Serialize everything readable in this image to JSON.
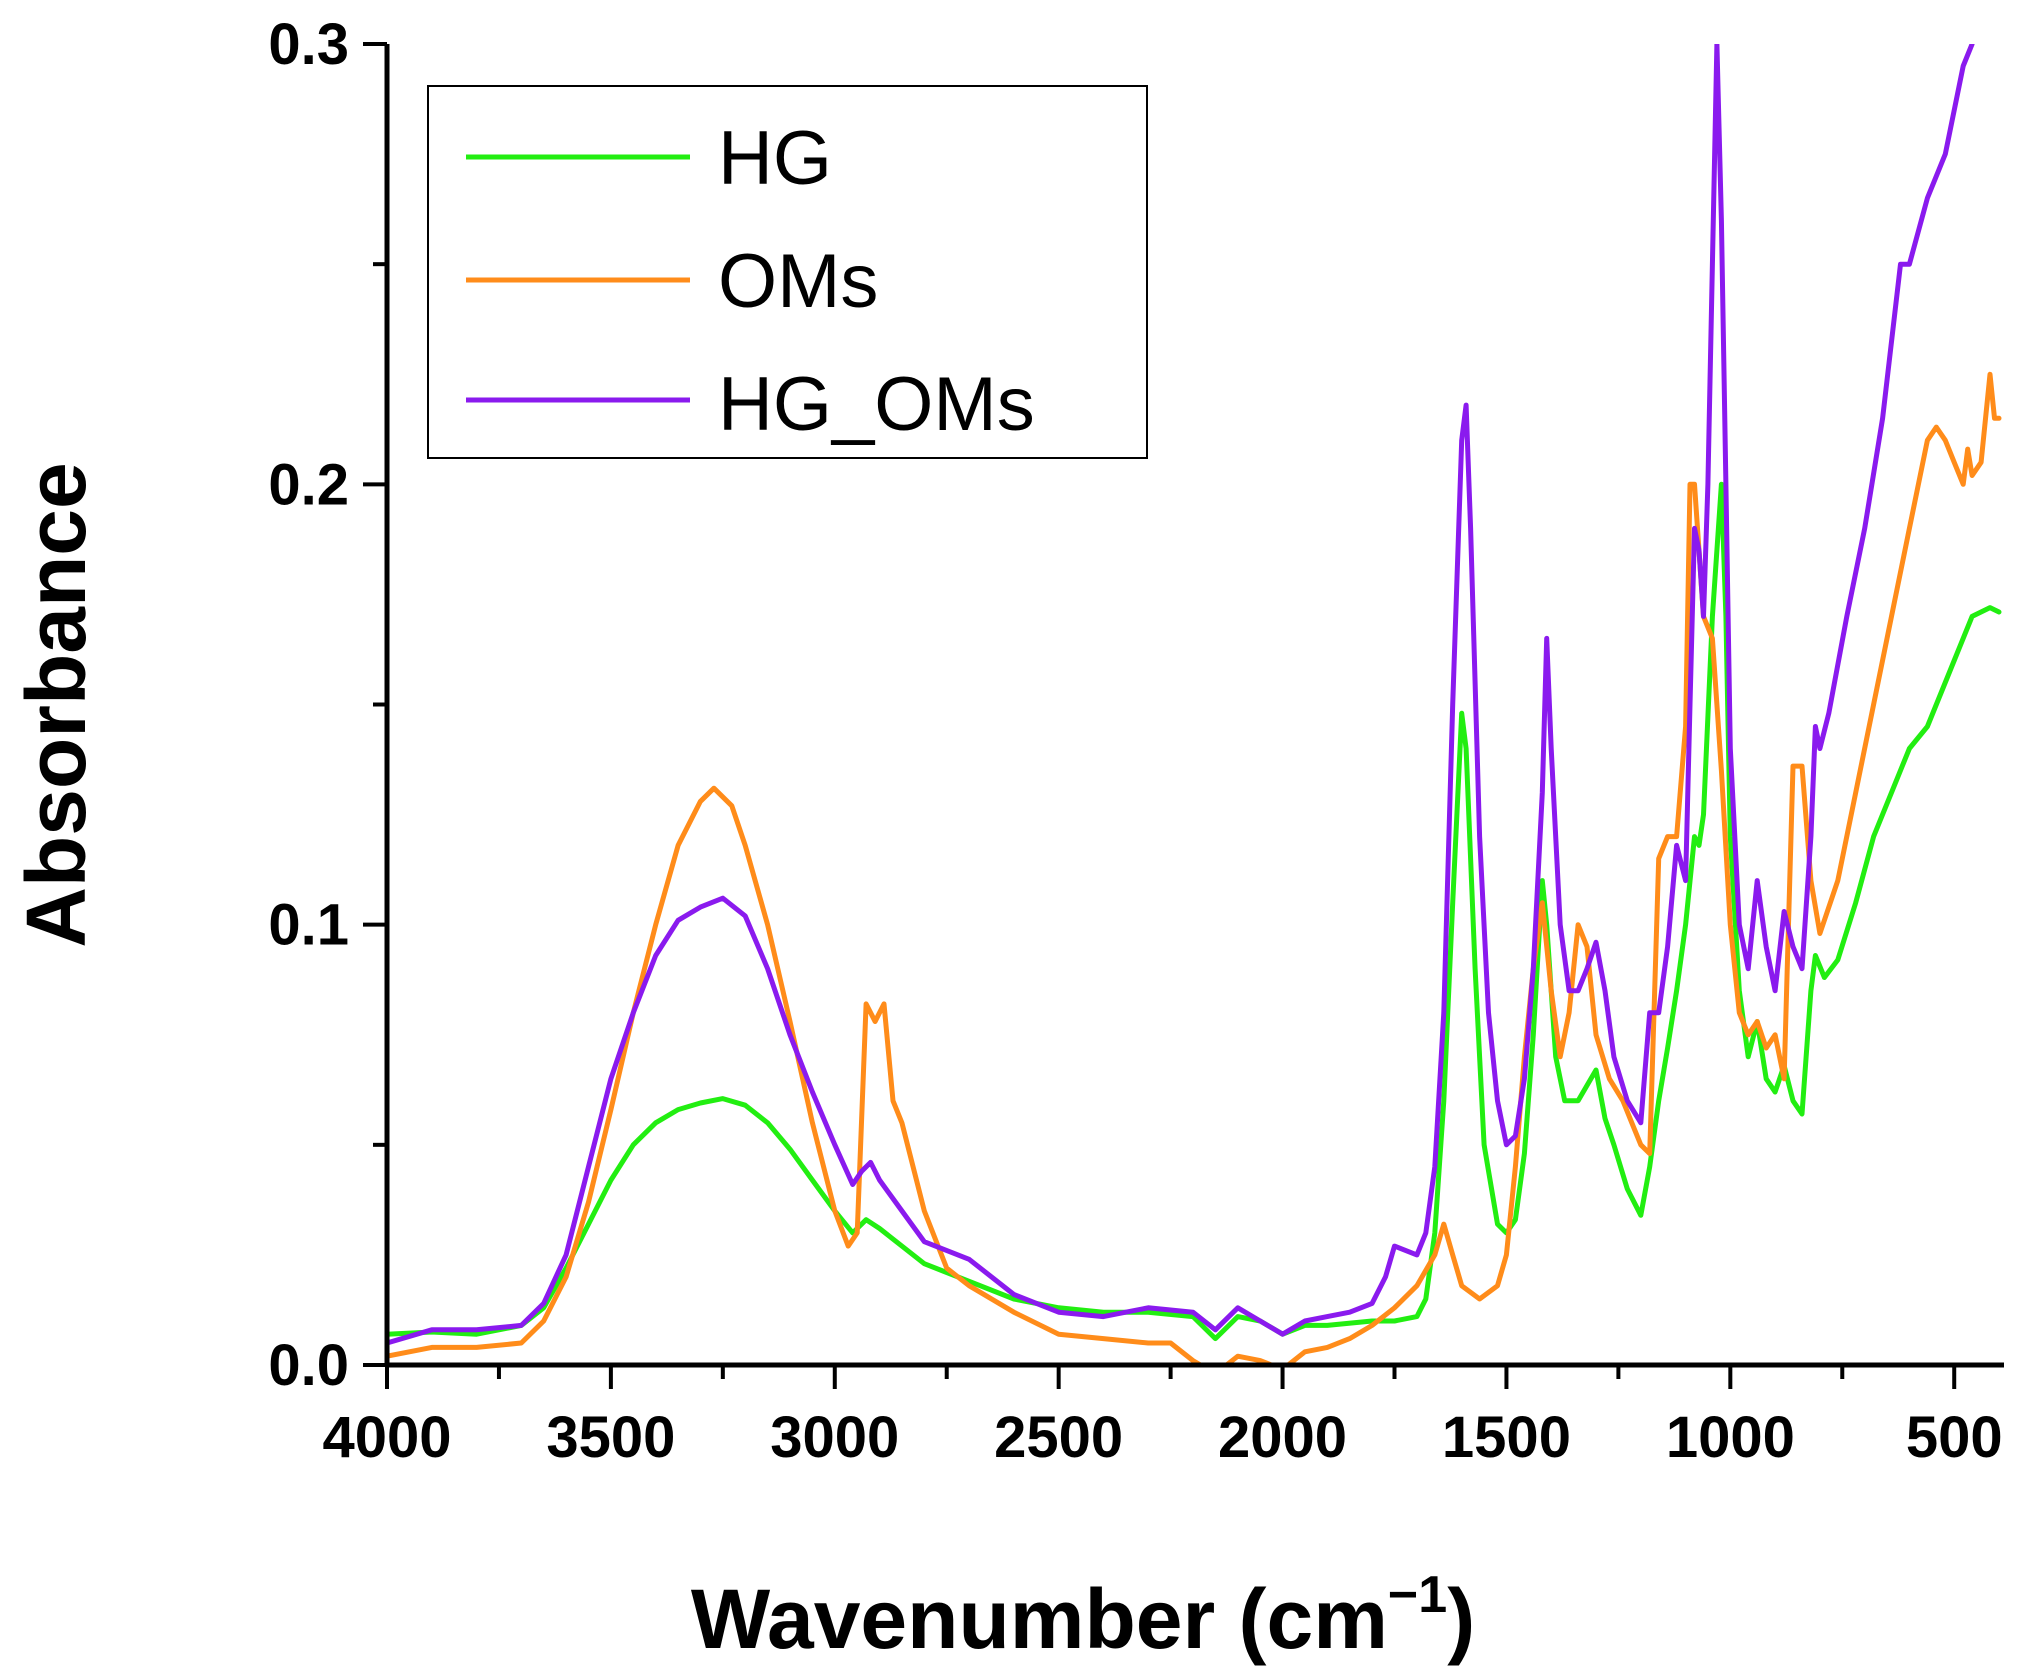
{
  "chart_data": {
    "type": "line",
    "title": "",
    "xlabel": "Wavenumber (cm",
    "xlabel_sup": "−1",
    "xlabel_close": ")",
    "ylabel": "Absorbance",
    "xlim": [
      4000,
      400
    ],
    "ylim": [
      0,
      0.3
    ],
    "x_ticks": [
      4000,
      3500,
      3000,
      2500,
      2000,
      1500,
      1000,
      500
    ],
    "x_tick_labels": [
      "4000",
      "3500",
      "3000",
      "2500",
      "2000",
      "1500",
      "1000",
      "500"
    ],
    "y_ticks": [
      0,
      0.1,
      0.2,
      0.3
    ],
    "y_tick_labels": [
      "0.0",
      "0.1",
      "0.2",
      "0.3"
    ],
    "legend_position": "top-left",
    "grid": false,
    "series": [
      {
        "name": "HG",
        "color": "#22ee11",
        "points": [
          [
            4000,
            0.007
          ],
          [
            3900,
            0.0075
          ],
          [
            3800,
            0.007
          ],
          [
            3700,
            0.009
          ],
          [
            3650,
            0.013
          ],
          [
            3600,
            0.022
          ],
          [
            3550,
            0.032
          ],
          [
            3500,
            0.042
          ],
          [
            3450,
            0.05
          ],
          [
            3400,
            0.055
          ],
          [
            3350,
            0.058
          ],
          [
            3300,
            0.0595
          ],
          [
            3250,
            0.0605
          ],
          [
            3200,
            0.059
          ],
          [
            3150,
            0.055
          ],
          [
            3100,
            0.049
          ],
          [
            3050,
            0.042
          ],
          [
            3000,
            0.035
          ],
          [
            2960,
            0.03
          ],
          [
            2930,
            0.033
          ],
          [
            2900,
            0.031
          ],
          [
            2850,
            0.027
          ],
          [
            2800,
            0.023
          ],
          [
            2750,
            0.021
          ],
          [
            2700,
            0.019
          ],
          [
            2600,
            0.015
          ],
          [
            2500,
            0.013
          ],
          [
            2400,
            0.012
          ],
          [
            2300,
            0.012
          ],
          [
            2200,
            0.011
          ],
          [
            2150,
            0.006
          ],
          [
            2100,
            0.011
          ],
          [
            2050,
            0.01
          ],
          [
            2000,
            0.007
          ],
          [
            1950,
            0.009
          ],
          [
            1900,
            0.009
          ],
          [
            1800,
            0.01
          ],
          [
            1750,
            0.01
          ],
          [
            1700,
            0.011
          ],
          [
            1680,
            0.015
          ],
          [
            1660,
            0.03
          ],
          [
            1640,
            0.06
          ],
          [
            1620,
            0.105
          ],
          [
            1600,
            0.148
          ],
          [
            1590,
            0.14
          ],
          [
            1570,
            0.09
          ],
          [
            1550,
            0.05
          ],
          [
            1520,
            0.032
          ],
          [
            1500,
            0.03
          ],
          [
            1480,
            0.033
          ],
          [
            1460,
            0.048
          ],
          [
            1440,
            0.075
          ],
          [
            1420,
            0.11
          ],
          [
            1410,
            0.1
          ],
          [
            1390,
            0.07
          ],
          [
            1370,
            0.06
          ],
          [
            1340,
            0.06
          ],
          [
            1300,
            0.067
          ],
          [
            1280,
            0.056
          ],
          [
            1260,
            0.05
          ],
          [
            1230,
            0.04
          ],
          [
            1200,
            0.034
          ],
          [
            1180,
            0.045
          ],
          [
            1160,
            0.06
          ],
          [
            1140,
            0.072
          ],
          [
            1120,
            0.085
          ],
          [
            1100,
            0.1
          ],
          [
            1080,
            0.12
          ],
          [
            1070,
            0.118
          ],
          [
            1060,
            0.125
          ],
          [
            1040,
            0.17
          ],
          [
            1020,
            0.2
          ],
          [
            1010,
            0.17
          ],
          [
            1000,
            0.12
          ],
          [
            980,
            0.085
          ],
          [
            960,
            0.07
          ],
          [
            940,
            0.078
          ],
          [
            920,
            0.065
          ],
          [
            900,
            0.062
          ],
          [
            880,
            0.068
          ],
          [
            860,
            0.06
          ],
          [
            840,
            0.057
          ],
          [
            820,
            0.085
          ],
          [
            810,
            0.093
          ],
          [
            790,
            0.088
          ],
          [
            760,
            0.092
          ],
          [
            720,
            0.105
          ],
          [
            680,
            0.12
          ],
          [
            640,
            0.13
          ],
          [
            600,
            0.14
          ],
          [
            560,
            0.145
          ],
          [
            500,
            0.16
          ],
          [
            460,
            0.17
          ],
          [
            420,
            0.172
          ],
          [
            400,
            0.171
          ]
        ]
      },
      {
        "name": "OMs",
        "color": "#ff8c1a",
        "points": [
          [
            4000,
            0.002
          ],
          [
            3900,
            0.004
          ],
          [
            3800,
            0.004
          ],
          [
            3700,
            0.005
          ],
          [
            3650,
            0.01
          ],
          [
            3600,
            0.02
          ],
          [
            3550,
            0.037
          ],
          [
            3500,
            0.058
          ],
          [
            3450,
            0.08
          ],
          [
            3400,
            0.1
          ],
          [
            3350,
            0.118
          ],
          [
            3300,
            0.128
          ],
          [
            3270,
            0.131
          ],
          [
            3230,
            0.127
          ],
          [
            3200,
            0.118
          ],
          [
            3150,
            0.1
          ],
          [
            3100,
            0.078
          ],
          [
            3050,
            0.055
          ],
          [
            3000,
            0.035
          ],
          [
            2970,
            0.027
          ],
          [
            2950,
            0.03
          ],
          [
            2930,
            0.082
          ],
          [
            2910,
            0.078
          ],
          [
            2890,
            0.082
          ],
          [
            2870,
            0.06
          ],
          [
            2850,
            0.055
          ],
          [
            2800,
            0.035
          ],
          [
            2750,
            0.022
          ],
          [
            2700,
            0.018
          ],
          [
            2600,
            0.012
          ],
          [
            2500,
            0.007
          ],
          [
            2400,
            0.006
          ],
          [
            2300,
            0.005
          ],
          [
            2250,
            0.005
          ],
          [
            2200,
            0.001
          ],
          [
            2150,
            -0.002
          ],
          [
            2100,
            0.002
          ],
          [
            2050,
            0.001
          ],
          [
            2000,
            -0.001
          ],
          [
            1950,
            0.003
          ],
          [
            1900,
            0.004
          ],
          [
            1850,
            0.006
          ],
          [
            1800,
            0.009
          ],
          [
            1750,
            0.013
          ],
          [
            1700,
            0.018
          ],
          [
            1660,
            0.025
          ],
          [
            1640,
            0.032
          ],
          [
            1620,
            0.025
          ],
          [
            1600,
            0.018
          ],
          [
            1560,
            0.015
          ],
          [
            1520,
            0.018
          ],
          [
            1500,
            0.025
          ],
          [
            1480,
            0.045
          ],
          [
            1460,
            0.07
          ],
          [
            1440,
            0.09
          ],
          [
            1420,
            0.105
          ],
          [
            1400,
            0.085
          ],
          [
            1380,
            0.07
          ],
          [
            1360,
            0.08
          ],
          [
            1340,
            0.1
          ],
          [
            1320,
            0.095
          ],
          [
            1300,
            0.075
          ],
          [
            1270,
            0.065
          ],
          [
            1240,
            0.06
          ],
          [
            1220,
            0.055
          ],
          [
            1200,
            0.05
          ],
          [
            1180,
            0.048
          ],
          [
            1160,
            0.115
          ],
          [
            1140,
            0.12
          ],
          [
            1120,
            0.12
          ],
          [
            1100,
            0.145
          ],
          [
            1090,
            0.2
          ],
          [
            1080,
            0.2
          ],
          [
            1060,
            0.17
          ],
          [
            1040,
            0.165
          ],
          [
            1020,
            0.135
          ],
          [
            1000,
            0.1
          ],
          [
            980,
            0.08
          ],
          [
            960,
            0.075
          ],
          [
            940,
            0.078
          ],
          [
            920,
            0.072
          ],
          [
            900,
            0.075
          ],
          [
            880,
            0.065
          ],
          [
            860,
            0.136
          ],
          [
            840,
            0.136
          ],
          [
            820,
            0.11
          ],
          [
            800,
            0.098
          ],
          [
            760,
            0.11
          ],
          [
            720,
            0.13
          ],
          [
            680,
            0.15
          ],
          [
            640,
            0.17
          ],
          [
            600,
            0.19
          ],
          [
            560,
            0.21
          ],
          [
            540,
            0.213
          ],
          [
            520,
            0.21
          ],
          [
            500,
            0.205
          ],
          [
            480,
            0.2
          ],
          [
            470,
            0.208
          ],
          [
            460,
            0.202
          ],
          [
            440,
            0.205
          ],
          [
            420,
            0.225
          ],
          [
            410,
            0.215
          ],
          [
            400,
            0.215
          ]
        ]
      },
      {
        "name": "HG_OMs",
        "color": "#8a1aee",
        "points": [
          [
            4000,
            0.005
          ],
          [
            3900,
            0.008
          ],
          [
            3800,
            0.008
          ],
          [
            3700,
            0.009
          ],
          [
            3650,
            0.014
          ],
          [
            3600,
            0.025
          ],
          [
            3550,
            0.045
          ],
          [
            3500,
            0.065
          ],
          [
            3450,
            0.08
          ],
          [
            3400,
            0.093
          ],
          [
            3350,
            0.101
          ],
          [
            3300,
            0.104
          ],
          [
            3250,
            0.106
          ],
          [
            3200,
            0.102
          ],
          [
            3150,
            0.09
          ],
          [
            3100,
            0.075
          ],
          [
            3050,
            0.062
          ],
          [
            3000,
            0.05
          ],
          [
            2960,
            0.041
          ],
          [
            2940,
            0.044
          ],
          [
            2920,
            0.046
          ],
          [
            2900,
            0.042
          ],
          [
            2850,
            0.035
          ],
          [
            2800,
            0.028
          ],
          [
            2700,
            0.024
          ],
          [
            2600,
            0.016
          ],
          [
            2500,
            0.012
          ],
          [
            2400,
            0.011
          ],
          [
            2300,
            0.013
          ],
          [
            2200,
            0.012
          ],
          [
            2150,
            0.008
          ],
          [
            2100,
            0.013
          ],
          [
            2050,
            0.01
          ],
          [
            2000,
            0.007
          ],
          [
            1950,
            0.01
          ],
          [
            1900,
            0.011
          ],
          [
            1850,
            0.012
          ],
          [
            1800,
            0.014
          ],
          [
            1770,
            0.02
          ],
          [
            1750,
            0.027
          ],
          [
            1700,
            0.025
          ],
          [
            1680,
            0.03
          ],
          [
            1660,
            0.045
          ],
          [
            1640,
            0.08
          ],
          [
            1620,
            0.15
          ],
          [
            1600,
            0.21
          ],
          [
            1590,
            0.218
          ],
          [
            1580,
            0.19
          ],
          [
            1560,
            0.12
          ],
          [
            1540,
            0.08
          ],
          [
            1520,
            0.06
          ],
          [
            1500,
            0.05
          ],
          [
            1480,
            0.052
          ],
          [
            1460,
            0.065
          ],
          [
            1440,
            0.09
          ],
          [
            1420,
            0.13
          ],
          [
            1410,
            0.165
          ],
          [
            1400,
            0.14
          ],
          [
            1380,
            0.1
          ],
          [
            1360,
            0.085
          ],
          [
            1340,
            0.085
          ],
          [
            1320,
            0.09
          ],
          [
            1300,
            0.096
          ],
          [
            1280,
            0.085
          ],
          [
            1260,
            0.07
          ],
          [
            1230,
            0.06
          ],
          [
            1200,
            0.055
          ],
          [
            1180,
            0.08
          ],
          [
            1160,
            0.08
          ],
          [
            1140,
            0.095
          ],
          [
            1120,
            0.118
          ],
          [
            1100,
            0.11
          ],
          [
            1090,
            0.15
          ],
          [
            1080,
            0.19
          ],
          [
            1070,
            0.185
          ],
          [
            1060,
            0.17
          ],
          [
            1050,
            0.2
          ],
          [
            1030,
            0.3
          ],
          [
            1020,
            0.26
          ],
          [
            1010,
            0.2
          ],
          [
            1000,
            0.14
          ],
          [
            980,
            0.1
          ],
          [
            960,
            0.09
          ],
          [
            940,
            0.11
          ],
          [
            920,
            0.095
          ],
          [
            900,
            0.085
          ],
          [
            880,
            0.103
          ],
          [
            860,
            0.095
          ],
          [
            840,
            0.09
          ],
          [
            820,
            0.12
          ],
          [
            810,
            0.145
          ],
          [
            800,
            0.14
          ],
          [
            780,
            0.148
          ],
          [
            740,
            0.17
          ],
          [
            700,
            0.19
          ],
          [
            660,
            0.215
          ],
          [
            620,
            0.25
          ],
          [
            600,
            0.25
          ],
          [
            560,
            0.265
          ],
          [
            520,
            0.275
          ],
          [
            480,
            0.295
          ],
          [
            460,
            0.3
          ]
        ]
      }
    ]
  }
}
